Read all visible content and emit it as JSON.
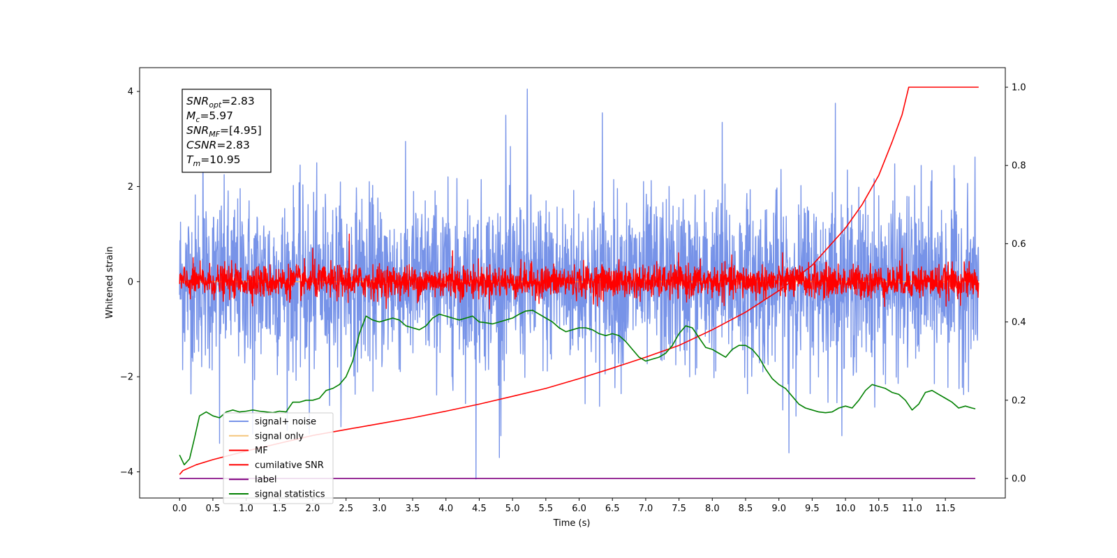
{
  "chart_data": {
    "type": "line",
    "xlabel": "Time (s)",
    "ylabel": "Whitened strain",
    "xlim": [
      -0.6,
      12.4
    ],
    "ylim": [
      -4.55,
      4.5
    ],
    "y2lim": [
      -0.05,
      1.05
    ],
    "x_ticks": [
      "0.0",
      "0.5",
      "1.0",
      "1.5",
      "2.0",
      "2.5",
      "3.0",
      "3.5",
      "4.0",
      "4.5",
      "5.0",
      "5.5",
      "6.0",
      "6.5",
      "7.0",
      "7.5",
      "8.0",
      "8.5",
      "9.0",
      "9.5",
      "10.0",
      "10.5",
      "11.0",
      "11.5"
    ],
    "y_ticks": [
      "4",
      "2",
      "0",
      "−2",
      "−4"
    ],
    "y2_ticks": [
      "1.0",
      "0.8",
      "0.6",
      "0.4",
      "0.2",
      "0.0"
    ],
    "annotations": [
      {
        "base": "SNR",
        "sub": "opt",
        "value": "=2.83"
      },
      {
        "base": "M",
        "sub": "c",
        "value": "=5.97"
      },
      {
        "base": "SNR",
        "sub": "MF",
        "value": "=[4.95]"
      },
      {
        "base": "CSNR",
        "sub": "",
        "value": "=2.83"
      },
      {
        "base": "T",
        "sub": "m",
        "value": "=10.95"
      }
    ],
    "series": [
      {
        "name": "signal+ noise",
        "axis": "left",
        "color": "#7793e8",
        "kind": "noise",
        "x_range": [
          0.0,
          12.0
        ],
        "sigma": 0.9,
        "y_extremes": [
          {
            "x": 4.45,
            "y": -4.15
          },
          {
            "x": 5.22,
            "y": 4.05
          },
          {
            "x": 0.6,
            "y": -3.4
          },
          {
            "x": 0.35,
            "y": 3.2
          },
          {
            "x": 4.9,
            "y": 3.5
          },
          {
            "x": 6.35,
            "y": 3.55
          },
          {
            "x": 8.15,
            "y": 3.35
          },
          {
            "x": 9.85,
            "y": 3.75
          },
          {
            "x": 9.15,
            "y": -3.6
          },
          {
            "x": 1.1,
            "y": -3.2
          },
          {
            "x": 4.8,
            "y": -3.7
          },
          {
            "x": 1.95,
            "y": -3.2
          }
        ]
      },
      {
        "name": "signal only",
        "axis": "left",
        "color": "#f5c57a",
        "kind": "flat",
        "x_range": [
          0.0,
          12.0
        ],
        "y": 0.0
      },
      {
        "name": "MF",
        "axis": "left",
        "color": "#ff0000",
        "kind": "noise",
        "x_range": [
          0.0,
          12.0
        ],
        "sigma": 0.17,
        "y_extremes": [
          {
            "x": 2.55,
            "y": 1.0
          },
          {
            "x": 2.0,
            "y": 0.7
          },
          {
            "x": 4.1,
            "y": 0.65
          },
          {
            "x": 10.85,
            "y": 0.7
          }
        ]
      },
      {
        "name": "cumilative SNR",
        "axis": "right",
        "color": "#ff0000",
        "kind": "curve",
        "x": [
          0.0,
          0.05,
          0.25,
          0.5,
          1.0,
          1.5,
          2.0,
          2.5,
          3.0,
          3.5,
          4.0,
          4.5,
          5.0,
          5.5,
          6.0,
          6.5,
          7.0,
          7.5,
          8.0,
          8.5,
          9.0,
          9.5,
          10.0,
          10.25,
          10.5,
          10.7,
          10.85,
          10.95,
          11.0,
          11.5,
          12.0
        ],
        "y": [
          0.01,
          0.02,
          0.035,
          0.048,
          0.07,
          0.09,
          0.11,
          0.125,
          0.14,
          0.155,
          0.172,
          0.19,
          0.21,
          0.23,
          0.255,
          0.282,
          0.31,
          0.34,
          0.38,
          0.425,
          0.48,
          0.545,
          0.64,
          0.7,
          0.775,
          0.86,
          0.93,
          1.0,
          1.0,
          1.0,
          1.0
        ]
      },
      {
        "name": "label",
        "axis": "right",
        "color": "#800080",
        "kind": "flat",
        "x_range": [
          0.0,
          11.95
        ],
        "y": 0.0
      },
      {
        "name": "signal statistics",
        "axis": "right",
        "color": "#008000",
        "kind": "curve",
        "x": [
          0.0,
          0.07,
          0.15,
          0.22,
          0.3,
          0.4,
          0.5,
          0.6,
          0.7,
          0.8,
          0.9,
          1.0,
          1.1,
          1.2,
          1.3,
          1.4,
          1.5,
          1.6,
          1.7,
          1.8,
          1.9,
          2.0,
          2.1,
          2.2,
          2.3,
          2.4,
          2.5,
          2.6,
          2.7,
          2.8,
          2.9,
          3.0,
          3.1,
          3.2,
          3.3,
          3.4,
          3.5,
          3.6,
          3.7,
          3.8,
          3.9,
          4.0,
          4.1,
          4.2,
          4.3,
          4.4,
          4.5,
          4.6,
          4.7,
          4.8,
          4.9,
          5.0,
          5.1,
          5.2,
          5.3,
          5.4,
          5.5,
          5.6,
          5.7,
          5.8,
          5.9,
          6.0,
          6.1,
          6.2,
          6.3,
          6.4,
          6.5,
          6.6,
          6.7,
          6.8,
          6.9,
          7.0,
          7.1,
          7.2,
          7.3,
          7.4,
          7.5,
          7.6,
          7.7,
          7.8,
          7.9,
          8.0,
          8.1,
          8.2,
          8.3,
          8.4,
          8.5,
          8.6,
          8.7,
          8.8,
          8.9,
          9.0,
          9.1,
          9.2,
          9.3,
          9.4,
          9.5,
          9.6,
          9.7,
          9.8,
          9.9,
          10.0,
          10.1,
          10.2,
          10.3,
          10.4,
          10.5,
          10.6,
          10.7,
          10.8,
          10.9,
          11.0,
          11.1,
          11.2,
          11.3,
          11.4,
          11.5,
          11.6,
          11.7,
          11.8,
          11.9,
          11.95
        ],
        "y": [
          0.06,
          0.035,
          0.05,
          0.1,
          0.16,
          0.17,
          0.16,
          0.155,
          0.17,
          0.175,
          0.17,
          0.172,
          0.175,
          0.172,
          0.17,
          0.168,
          0.172,
          0.17,
          0.195,
          0.195,
          0.2,
          0.2,
          0.205,
          0.225,
          0.23,
          0.24,
          0.26,
          0.3,
          0.37,
          0.415,
          0.405,
          0.4,
          0.405,
          0.41,
          0.405,
          0.39,
          0.385,
          0.38,
          0.39,
          0.41,
          0.42,
          0.415,
          0.41,
          0.405,
          0.41,
          0.415,
          0.4,
          0.398,
          0.395,
          0.4,
          0.405,
          0.41,
          0.42,
          0.428,
          0.43,
          0.42,
          0.41,
          0.4,
          0.385,
          0.375,
          0.38,
          0.385,
          0.385,
          0.38,
          0.37,
          0.365,
          0.37,
          0.365,
          0.35,
          0.33,
          0.31,
          0.3,
          0.305,
          0.31,
          0.32,
          0.34,
          0.37,
          0.39,
          0.385,
          0.36,
          0.335,
          0.33,
          0.32,
          0.31,
          0.33,
          0.34,
          0.34,
          0.33,
          0.31,
          0.28,
          0.255,
          0.24,
          0.23,
          0.21,
          0.19,
          0.18,
          0.175,
          0.17,
          0.168,
          0.17,
          0.18,
          0.185,
          0.18,
          0.2,
          0.225,
          0.24,
          0.235,
          0.23,
          0.22,
          0.215,
          0.2,
          0.175,
          0.19,
          0.22,
          0.225,
          0.215,
          0.205,
          0.195,
          0.18,
          0.185,
          0.18,
          0.178
        ]
      }
    ],
    "legend": {
      "placement": "lower-left"
    }
  }
}
